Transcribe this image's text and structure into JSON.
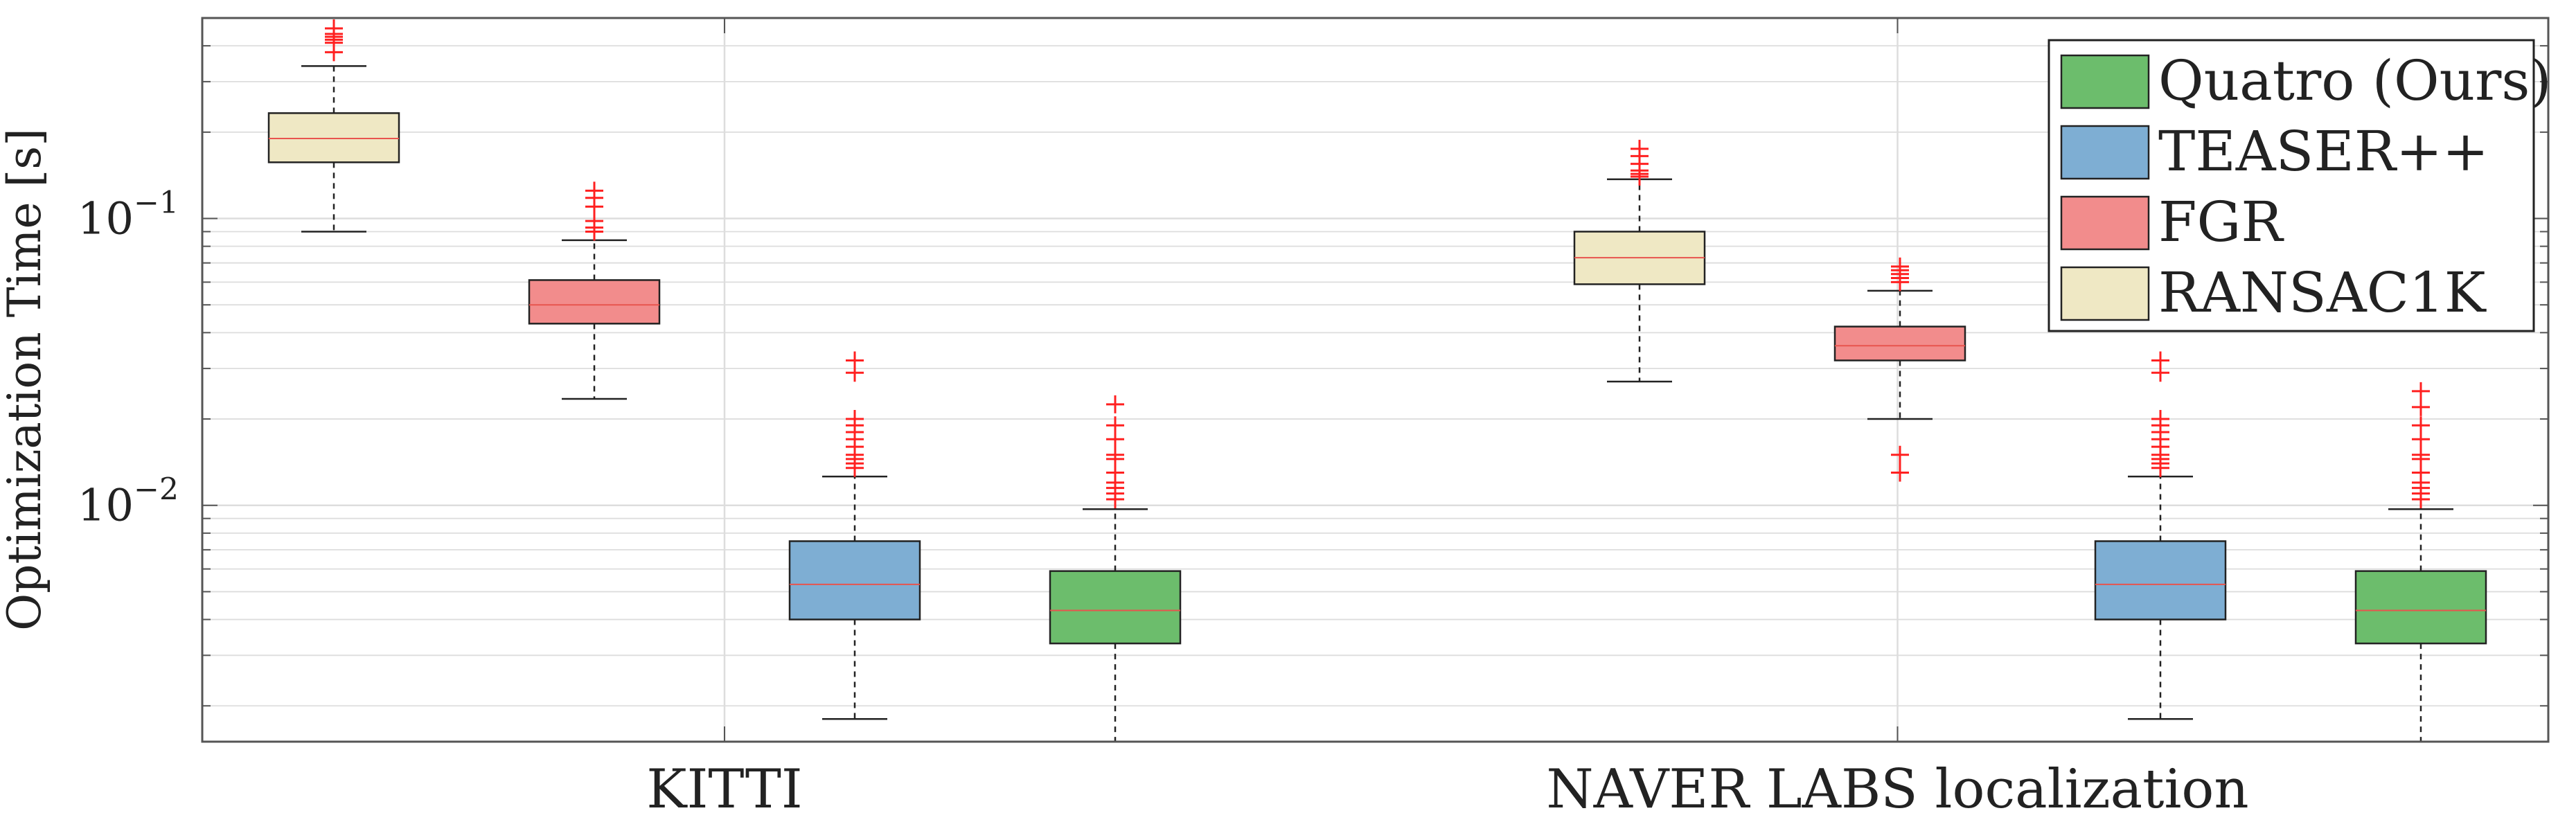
{
  "chart_data": {
    "type": "box",
    "title": "",
    "xlabel": "",
    "ylabel": "Optimization Time [s]",
    "yscale": "log",
    "ylim": [
      0.0015,
      0.5
    ],
    "yticks": [
      {
        "value": 0.1,
        "label_base": "10",
        "label_exp": "−1"
      },
      {
        "value": 0.01,
        "label_base": "10",
        "label_exp": "−2"
      }
    ],
    "grid": true,
    "legend_position": "top-right",
    "categories": [
      "KITTI",
      "NAVER LABS localization"
    ],
    "series": [
      {
        "name": "RANSAC1K",
        "color": "#efe8c4",
        "boxes": [
          {
            "category": "KITTI",
            "whisker_low": 0.09,
            "q1": 0.157,
            "median": 0.19,
            "q3": 0.233,
            "whisker_high": 0.34,
            "outliers": [
              0.38,
              0.41,
              0.42,
              0.43,
              0.44,
              0.46
            ]
          },
          {
            "category": "NAVER LABS localization",
            "whisker_low": 0.027,
            "q1": 0.059,
            "median": 0.073,
            "q3": 0.09,
            "whisker_high": 0.137,
            "outliers": [
              0.14,
              0.143,
              0.147,
              0.155,
              0.165,
              0.175
            ]
          }
        ]
      },
      {
        "name": "FGR",
        "color": "#f28c8c",
        "boxes": [
          {
            "category": "KITTI",
            "whisker_low": 0.0235,
            "q1": 0.043,
            "median": 0.05,
            "q3": 0.061,
            "whisker_high": 0.084,
            "outliers": [
              0.09,
              0.093,
              0.098,
              0.11,
              0.118,
              0.125
            ]
          },
          {
            "category": "NAVER LABS localization",
            "whisker_low": 0.02,
            "q1": 0.032,
            "median": 0.036,
            "q3": 0.042,
            "whisker_high": 0.056,
            "outliers": [
              0.013,
              0.015,
              0.06,
              0.062,
              0.064,
              0.066,
              0.068
            ]
          }
        ]
      },
      {
        "name": "TEASER++",
        "color": "#7eaed3",
        "boxes": [
          {
            "category": "KITTI",
            "whisker_low": 0.0018,
            "q1": 0.004,
            "median": 0.0053,
            "q3": 0.0075,
            "whisker_high": 0.0126,
            "outliers": [
              0.0135,
              0.014,
              0.0145,
              0.015,
              0.016,
              0.017,
              0.018,
              0.019,
              0.02,
              0.029,
              0.032
            ]
          },
          {
            "category": "NAVER LABS localization",
            "whisker_low": 0.0018,
            "q1": 0.004,
            "median": 0.0053,
            "q3": 0.0075,
            "whisker_high": 0.0126,
            "outliers": [
              0.0135,
              0.014,
              0.0145,
              0.015,
              0.016,
              0.017,
              0.018,
              0.019,
              0.02,
              0.029,
              0.032
            ]
          }
        ]
      },
      {
        "name": "Quatro (Ours)",
        "color": "#6cbd6c",
        "boxes": [
          {
            "category": "KITTI",
            "whisker_low": 0.0015,
            "q1": 0.0033,
            "median": 0.0043,
            "q3": 0.0059,
            "whisker_high": 0.0097,
            "outliers": [
              0.0105,
              0.011,
              0.0115,
              0.012,
              0.013,
              0.0145,
              0.015,
              0.017,
              0.019,
              0.0225
            ]
          },
          {
            "category": "NAVER LABS localization",
            "whisker_low": 0.0015,
            "q1": 0.0033,
            "median": 0.0043,
            "q3": 0.0059,
            "whisker_high": 0.0097,
            "outliers": [
              0.0105,
              0.011,
              0.0115,
              0.012,
              0.013,
              0.0145,
              0.015,
              0.017,
              0.019,
              0.022,
              0.025
            ]
          }
        ]
      }
    ],
    "legend": {
      "entries": [
        {
          "name": "Quatro (Ours)",
          "color": "#6cbd6c"
        },
        {
          "name": "TEASER++",
          "color": "#7eaed3"
        },
        {
          "name": "FGR",
          "color": "#f28c8c"
        },
        {
          "name": "RANSAC1K",
          "color": "#efe8c4"
        }
      ]
    },
    "colors": {
      "median_line": "#e8544e",
      "outlier_marker": "#ff2020",
      "grid": "#dddddd",
      "axes": "#555555"
    }
  }
}
